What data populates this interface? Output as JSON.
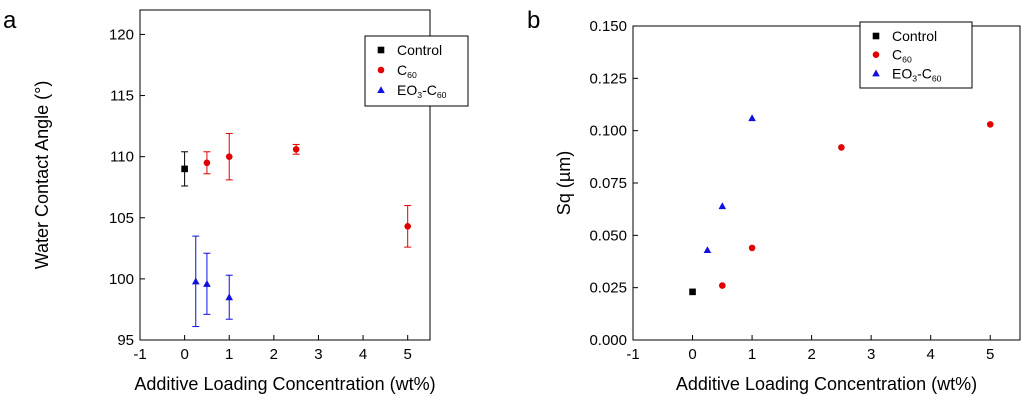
{
  "chart_data": [
    {
      "panel_label": "a",
      "type": "scatter",
      "xlabel": "Additive Loading Concentration (wt%)",
      "ylabel": "Water Contact Angle (°)",
      "xlim": [
        -1,
        5.5
      ],
      "ylim": [
        95,
        122
      ],
      "xticks": [
        -1,
        0,
        1,
        2,
        3,
        4,
        5
      ],
      "yticks": [
        95,
        100,
        105,
        110,
        115,
        120
      ],
      "legend_position": "top-right",
      "series": [
        {
          "name": "Control",
          "sub": "",
          "marker": "square",
          "color": "#000000",
          "points": [
            {
              "x": 0,
              "y": 109.0,
              "err": 1.4
            }
          ]
        },
        {
          "name": "C",
          "sub": "60",
          "marker": "circle",
          "color": "#e00000",
          "points": [
            {
              "x": 0.5,
              "y": 109.5,
              "err": 0.9
            },
            {
              "x": 1,
              "y": 110.0,
              "err": 1.9
            },
            {
              "x": 2.5,
              "y": 110.6,
              "err": 0.4
            },
            {
              "x": 5,
              "y": 104.3,
              "err": 1.7
            }
          ]
        },
        {
          "name": "EO",
          "sub": "3",
          "name2": "-C",
          "sub2": "60",
          "marker": "triangle",
          "color": "#1010e0",
          "points": [
            {
              "x": 0.25,
              "y": 99.8,
              "err": 3.7
            },
            {
              "x": 0.5,
              "y": 99.6,
              "err": 2.5
            },
            {
              "x": 1,
              "y": 98.5,
              "err": 1.8
            }
          ]
        }
      ]
    },
    {
      "panel_label": "b",
      "type": "scatter",
      "xlabel": "Additive Loading Concentration (wt%)",
      "ylabel": "Sq (µm)",
      "xlim": [
        -1,
        5.5
      ],
      "ylim": [
        0,
        0.15
      ],
      "xticks": [
        -1,
        0,
        1,
        2,
        3,
        4,
        5
      ],
      "yticks": [
        "0.000",
        "0.025",
        "0.050",
        "0.075",
        "0.100",
        "0.125",
        "0.150"
      ],
      "legend_position": "top-right",
      "series": [
        {
          "name": "Control",
          "sub": "",
          "marker": "square",
          "color": "#000000",
          "points": [
            {
              "x": 0,
              "y": 0.023
            }
          ]
        },
        {
          "name": "C",
          "sub": "60",
          "marker": "circle",
          "color": "#e00000",
          "points": [
            {
              "x": 0.5,
              "y": 0.026
            },
            {
              "x": 1,
              "y": 0.044
            },
            {
              "x": 2.5,
              "y": 0.092
            },
            {
              "x": 5,
              "y": 0.103
            }
          ]
        },
        {
          "name": "EO",
          "sub": "3",
          "name2": "-C",
          "sub2": "60",
          "marker": "triangle",
          "color": "#1010e0",
          "points": [
            {
              "x": 0.25,
              "y": 0.043
            },
            {
              "x": 0.5,
              "y": 0.064
            },
            {
              "x": 1,
              "y": 0.106
            }
          ]
        }
      ]
    }
  ]
}
